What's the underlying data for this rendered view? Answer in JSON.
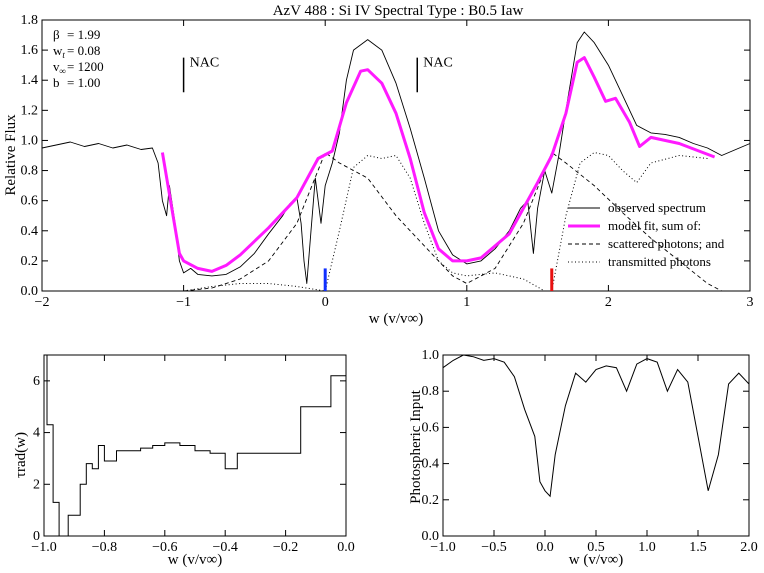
{
  "chart_data": [
    {
      "type": "line",
      "title": "AzV 488 : Si IV     Spectral Type : B0.5 Iaw",
      "xlabel": "w (v/v∞)",
      "ylabel": "Relative Flux",
      "xlim": [
        -2,
        3
      ],
      "ylim": [
        0,
        1.8
      ],
      "xticks": [
        -2,
        -1,
        0,
        1,
        2,
        3
      ],
      "xtick_labels": [
        "−2",
        "−1",
        "0",
        "1",
        "2",
        "3"
      ],
      "yticks": [
        0,
        0.2,
        0.4,
        0.6,
        0.8,
        1.0,
        1.2,
        1.4,
        1.6,
        1.8
      ],
      "ytick_labels": [
        "0.0",
        "0.2",
        "0.4",
        "0.6",
        "0.8",
        "1.0",
        "1.2",
        "1.4",
        "1.6",
        "1.8"
      ],
      "params": [
        {
          "sym": "β",
          "sub": "",
          "value": "= 1.99"
        },
        {
          "sym": "w",
          "sub": "t",
          "value": "= 0.08"
        },
        {
          "sym": "v",
          "sub": "∞",
          "value": "= 1200"
        },
        {
          "sym": "b",
          "sub": "",
          "value": "= 1.00"
        }
      ],
      "annotations": [
        {
          "text": "NAC",
          "x": -1.0,
          "y_top": 1.55,
          "y_bottom": 1.32
        },
        {
          "text": "NAC",
          "x": 0.65,
          "y_top": 1.55,
          "y_bottom": 1.32
        }
      ],
      "marker_lines": [
        {
          "x": 0.0,
          "y0": 0,
          "y1": 0.15,
          "color": "#1030ff"
        },
        {
          "x": 1.6,
          "y0": 0,
          "y1": 0.15,
          "color": "#e81010"
        }
      ],
      "legend": {
        "position": "right",
        "entries": [
          {
            "label": "observed spectrum",
            "style": "solid"
          },
          {
            "label": "model fit, sum of:",
            "style": "magenta-thick"
          },
          {
            "label": "scattered photons; and",
            "style": "dashed"
          },
          {
            "label": "transmitted photons",
            "style": "dotted"
          }
        ]
      },
      "series": [
        {
          "name": "observed spectrum",
          "style": "solid",
          "color": "#000000",
          "points": [
            [
              -2.0,
              0.95
            ],
            [
              -1.9,
              0.97
            ],
            [
              -1.8,
              0.99
            ],
            [
              -1.7,
              0.96
            ],
            [
              -1.6,
              0.98
            ],
            [
              -1.5,
              0.95
            ],
            [
              -1.4,
              0.97
            ],
            [
              -1.3,
              0.94
            ],
            [
              -1.22,
              0.95
            ],
            [
              -1.18,
              0.85
            ],
            [
              -1.15,
              0.6
            ],
            [
              -1.12,
              0.5
            ],
            [
              -1.1,
              0.7
            ],
            [
              -1.06,
              0.45
            ],
            [
              -1.03,
              0.2
            ],
            [
              -1.0,
              0.12
            ],
            [
              -0.95,
              0.15
            ],
            [
              -0.9,
              0.11
            ],
            [
              -0.8,
              0.1
            ],
            [
              -0.7,
              0.11
            ],
            [
              -0.6,
              0.16
            ],
            [
              -0.5,
              0.25
            ],
            [
              -0.4,
              0.38
            ],
            [
              -0.3,
              0.5
            ],
            [
              -0.25,
              0.58
            ],
            [
              -0.2,
              0.62
            ],
            [
              -0.17,
              0.45
            ],
            [
              -0.15,
              0.2
            ],
            [
              -0.13,
              0.05
            ],
            [
              -0.1,
              0.4
            ],
            [
              -0.07,
              0.75
            ],
            [
              -0.03,
              0.45
            ],
            [
              0.0,
              0.7
            ],
            [
              0.05,
              0.85
            ],
            [
              0.1,
              1.05
            ],
            [
              0.15,
              1.4
            ],
            [
              0.2,
              1.6
            ],
            [
              0.3,
              1.67
            ],
            [
              0.4,
              1.6
            ],
            [
              0.5,
              1.38
            ],
            [
              0.6,
              1.08
            ],
            [
              0.7,
              0.75
            ],
            [
              0.8,
              0.4
            ],
            [
              0.9,
              0.24
            ],
            [
              1.0,
              0.18
            ],
            [
              1.1,
              0.2
            ],
            [
              1.2,
              0.28
            ],
            [
              1.3,
              0.4
            ],
            [
              1.38,
              0.55
            ],
            [
              1.43,
              0.6
            ],
            [
              1.47,
              0.25
            ],
            [
              1.5,
              0.55
            ],
            [
              1.55,
              0.8
            ],
            [
              1.6,
              0.65
            ],
            [
              1.65,
              0.9
            ],
            [
              1.7,
              1.2
            ],
            [
              1.78,
              1.65
            ],
            [
              1.83,
              1.72
            ],
            [
              1.9,
              1.65
            ],
            [
              2.0,
              1.5
            ],
            [
              2.1,
              1.3
            ],
            [
              2.2,
              1.1
            ],
            [
              2.3,
              1.05
            ],
            [
              2.4,
              1.04
            ],
            [
              2.5,
              1.02
            ],
            [
              2.6,
              0.98
            ],
            [
              2.7,
              0.95
            ],
            [
              2.8,
              0.9
            ],
            [
              2.9,
              0.94
            ],
            [
              3.0,
              0.98
            ]
          ]
        },
        {
          "name": "model fit, sum of:",
          "style": "magenta-thick",
          "color": "#ff1aff",
          "points": [
            [
              -1.15,
              0.92
            ],
            [
              -1.03,
              0.25
            ],
            [
              -1.0,
              0.2
            ],
            [
              -0.9,
              0.15
            ],
            [
              -0.8,
              0.13
            ],
            [
              -0.7,
              0.17
            ],
            [
              -0.6,
              0.24
            ],
            [
              -0.4,
              0.42
            ],
            [
              -0.2,
              0.62
            ],
            [
              -0.05,
              0.88
            ],
            [
              0.05,
              0.93
            ],
            [
              0.15,
              1.25
            ],
            [
              0.25,
              1.46
            ],
            [
              0.3,
              1.47
            ],
            [
              0.4,
              1.38
            ],
            [
              0.5,
              1.18
            ],
            [
              0.6,
              0.88
            ],
            [
              0.7,
              0.52
            ],
            [
              0.8,
              0.28
            ],
            [
              0.9,
              0.2
            ],
            [
              1.0,
              0.2
            ],
            [
              1.1,
              0.22
            ],
            [
              1.3,
              0.38
            ],
            [
              1.5,
              0.72
            ],
            [
              1.6,
              0.9
            ],
            [
              1.7,
              1.18
            ],
            [
              1.78,
              1.52
            ],
            [
              1.83,
              1.55
            ],
            [
              1.9,
              1.42
            ],
            [
              1.98,
              1.26
            ],
            [
              2.05,
              1.28
            ],
            [
              2.15,
              1.12
            ],
            [
              2.22,
              0.96
            ],
            [
              2.3,
              1.02
            ],
            [
              2.5,
              0.98
            ],
            [
              2.75,
              0.89
            ]
          ]
        },
        {
          "name": "scattered photons; and",
          "style": "dashed",
          "color": "#000000",
          "points": [
            [
              -1.0,
              0.0
            ],
            [
              -0.8,
              0.02
            ],
            [
              -0.6,
              0.08
            ],
            [
              -0.4,
              0.2
            ],
            [
              -0.2,
              0.45
            ],
            [
              0.0,
              0.92
            ],
            [
              0.1,
              0.85
            ],
            [
              0.3,
              0.75
            ],
            [
              0.5,
              0.5
            ],
            [
              0.7,
              0.3
            ],
            [
              0.9,
              0.1
            ],
            [
              1.0,
              0.05
            ],
            [
              1.2,
              0.15
            ],
            [
              1.4,
              0.45
            ],
            [
              1.6,
              0.92
            ],
            [
              1.7,
              0.85
            ],
            [
              1.9,
              0.7
            ],
            [
              2.1,
              0.52
            ],
            [
              2.3,
              0.35
            ],
            [
              2.5,
              0.2
            ],
            [
              2.7,
              0.05
            ],
            [
              2.8,
              0.0
            ]
          ]
        },
        {
          "name": "transmitted photons",
          "style": "dotted",
          "color": "#000000",
          "points": [
            [
              -1.0,
              0.0
            ],
            [
              -0.8,
              0.03
            ],
            [
              -0.6,
              0.05
            ],
            [
              -0.4,
              0.05
            ],
            [
              -0.2,
              0.03
            ],
            [
              0.0,
              0.0
            ],
            [
              0.1,
              0.4
            ],
            [
              0.2,
              0.82
            ],
            [
              0.3,
              0.9
            ],
            [
              0.4,
              0.88
            ],
            [
              0.5,
              0.9
            ],
            [
              0.6,
              0.75
            ],
            [
              0.7,
              0.45
            ],
            [
              0.8,
              0.2
            ],
            [
              0.9,
              0.12
            ],
            [
              1.0,
              0.1
            ],
            [
              1.2,
              0.12
            ],
            [
              1.4,
              0.08
            ],
            [
              1.55,
              0.0
            ],
            [
              1.6,
              0.0
            ],
            [
              1.7,
              0.5
            ],
            [
              1.8,
              0.85
            ],
            [
              1.9,
              0.92
            ],
            [
              2.0,
              0.9
            ],
            [
              2.1,
              0.8
            ],
            [
              2.2,
              0.72
            ],
            [
              2.3,
              0.85
            ],
            [
              2.5,
              0.9
            ],
            [
              2.7,
              0.88
            ]
          ]
        }
      ]
    },
    {
      "type": "step",
      "xlabel": "w (v/v∞)",
      "ylabel": "τrad(w)",
      "xlim": [
        -1.0,
        0.0
      ],
      "ylim": [
        0,
        7
      ],
      "xticks": [
        -1.0,
        -0.8,
        -0.6,
        -0.4,
        -0.2,
        0.0
      ],
      "xtick_labels": [
        "−1.0",
        "−0.8",
        "−0.6",
        "−0.4",
        "−0.2",
        "0.0"
      ],
      "yticks": [
        0,
        2,
        4,
        6
      ],
      "ytick_labels": [
        "0",
        "2",
        "4",
        "6"
      ],
      "series": [
        {
          "name": "tau_rad",
          "points": [
            [
              -1.0,
              7.0
            ],
            [
              -0.99,
              4.3
            ],
            [
              -0.97,
              1.3
            ],
            [
              -0.95,
              0.0
            ],
            [
              -0.92,
              0.8
            ],
            [
              -0.88,
              2.0
            ],
            [
              -0.86,
              2.8
            ],
            [
              -0.84,
              2.6
            ],
            [
              -0.82,
              3.5
            ],
            [
              -0.8,
              2.9
            ],
            [
              -0.76,
              3.3
            ],
            [
              -0.72,
              3.3
            ],
            [
              -0.68,
              3.4
            ],
            [
              -0.64,
              3.5
            ],
            [
              -0.6,
              3.6
            ],
            [
              -0.55,
              3.5
            ],
            [
              -0.5,
              3.3
            ],
            [
              -0.45,
              3.2
            ],
            [
              -0.4,
              2.6
            ],
            [
              -0.36,
              3.2
            ],
            [
              -0.3,
              3.2
            ],
            [
              -0.26,
              3.2
            ],
            [
              -0.15,
              5.0
            ],
            [
              -0.05,
              6.2
            ],
            [
              0.0,
              6.2
            ]
          ]
        }
      ]
    },
    {
      "type": "line",
      "xlabel": "w (v/v∞)",
      "ylabel": "Photospheric Input",
      "xlim": [
        -1.0,
        2.0
      ],
      "ylim": [
        0,
        1.0
      ],
      "xticks": [
        -1.0,
        -0.5,
        0.0,
        0.5,
        1.0,
        1.5,
        2.0
      ],
      "xtick_labels": [
        "−1.0",
        "−0.5",
        "0.0",
        "0.5",
        "1.0",
        "1.5",
        "2.0"
      ],
      "yticks": [
        0,
        0.2,
        0.4,
        0.6,
        0.8,
        1.0
      ],
      "ytick_labels": [
        "0.0",
        "0.2",
        "0.4",
        "0.6",
        "0.8",
        "1.0"
      ],
      "series": [
        {
          "name": "photospheric input",
          "points": [
            [
              -1.0,
              0.93
            ],
            [
              -0.9,
              0.97
            ],
            [
              -0.8,
              1.0
            ],
            [
              -0.7,
              0.99
            ],
            [
              -0.6,
              0.97
            ],
            [
              -0.5,
              0.98
            ],
            [
              -0.4,
              0.96
            ],
            [
              -0.3,
              0.88
            ],
            [
              -0.2,
              0.7
            ],
            [
              -0.1,
              0.55
            ],
            [
              -0.05,
              0.3
            ],
            [
              0.0,
              0.25
            ],
            [
              0.05,
              0.22
            ],
            [
              0.1,
              0.45
            ],
            [
              0.2,
              0.72
            ],
            [
              0.3,
              0.9
            ],
            [
              0.4,
              0.85
            ],
            [
              0.5,
              0.92
            ],
            [
              0.6,
              0.94
            ],
            [
              0.7,
              0.93
            ],
            [
              0.8,
              0.8
            ],
            [
              0.9,
              0.95
            ],
            [
              1.0,
              0.98
            ],
            [
              1.1,
              0.96
            ],
            [
              1.2,
              0.8
            ],
            [
              1.3,
              0.92
            ],
            [
              1.4,
              0.85
            ],
            [
              1.5,
              0.55
            ],
            [
              1.6,
              0.25
            ],
            [
              1.7,
              0.45
            ],
            [
              1.8,
              0.84
            ],
            [
              1.9,
              0.9
            ],
            [
              2.0,
              0.84
            ]
          ]
        }
      ]
    }
  ]
}
